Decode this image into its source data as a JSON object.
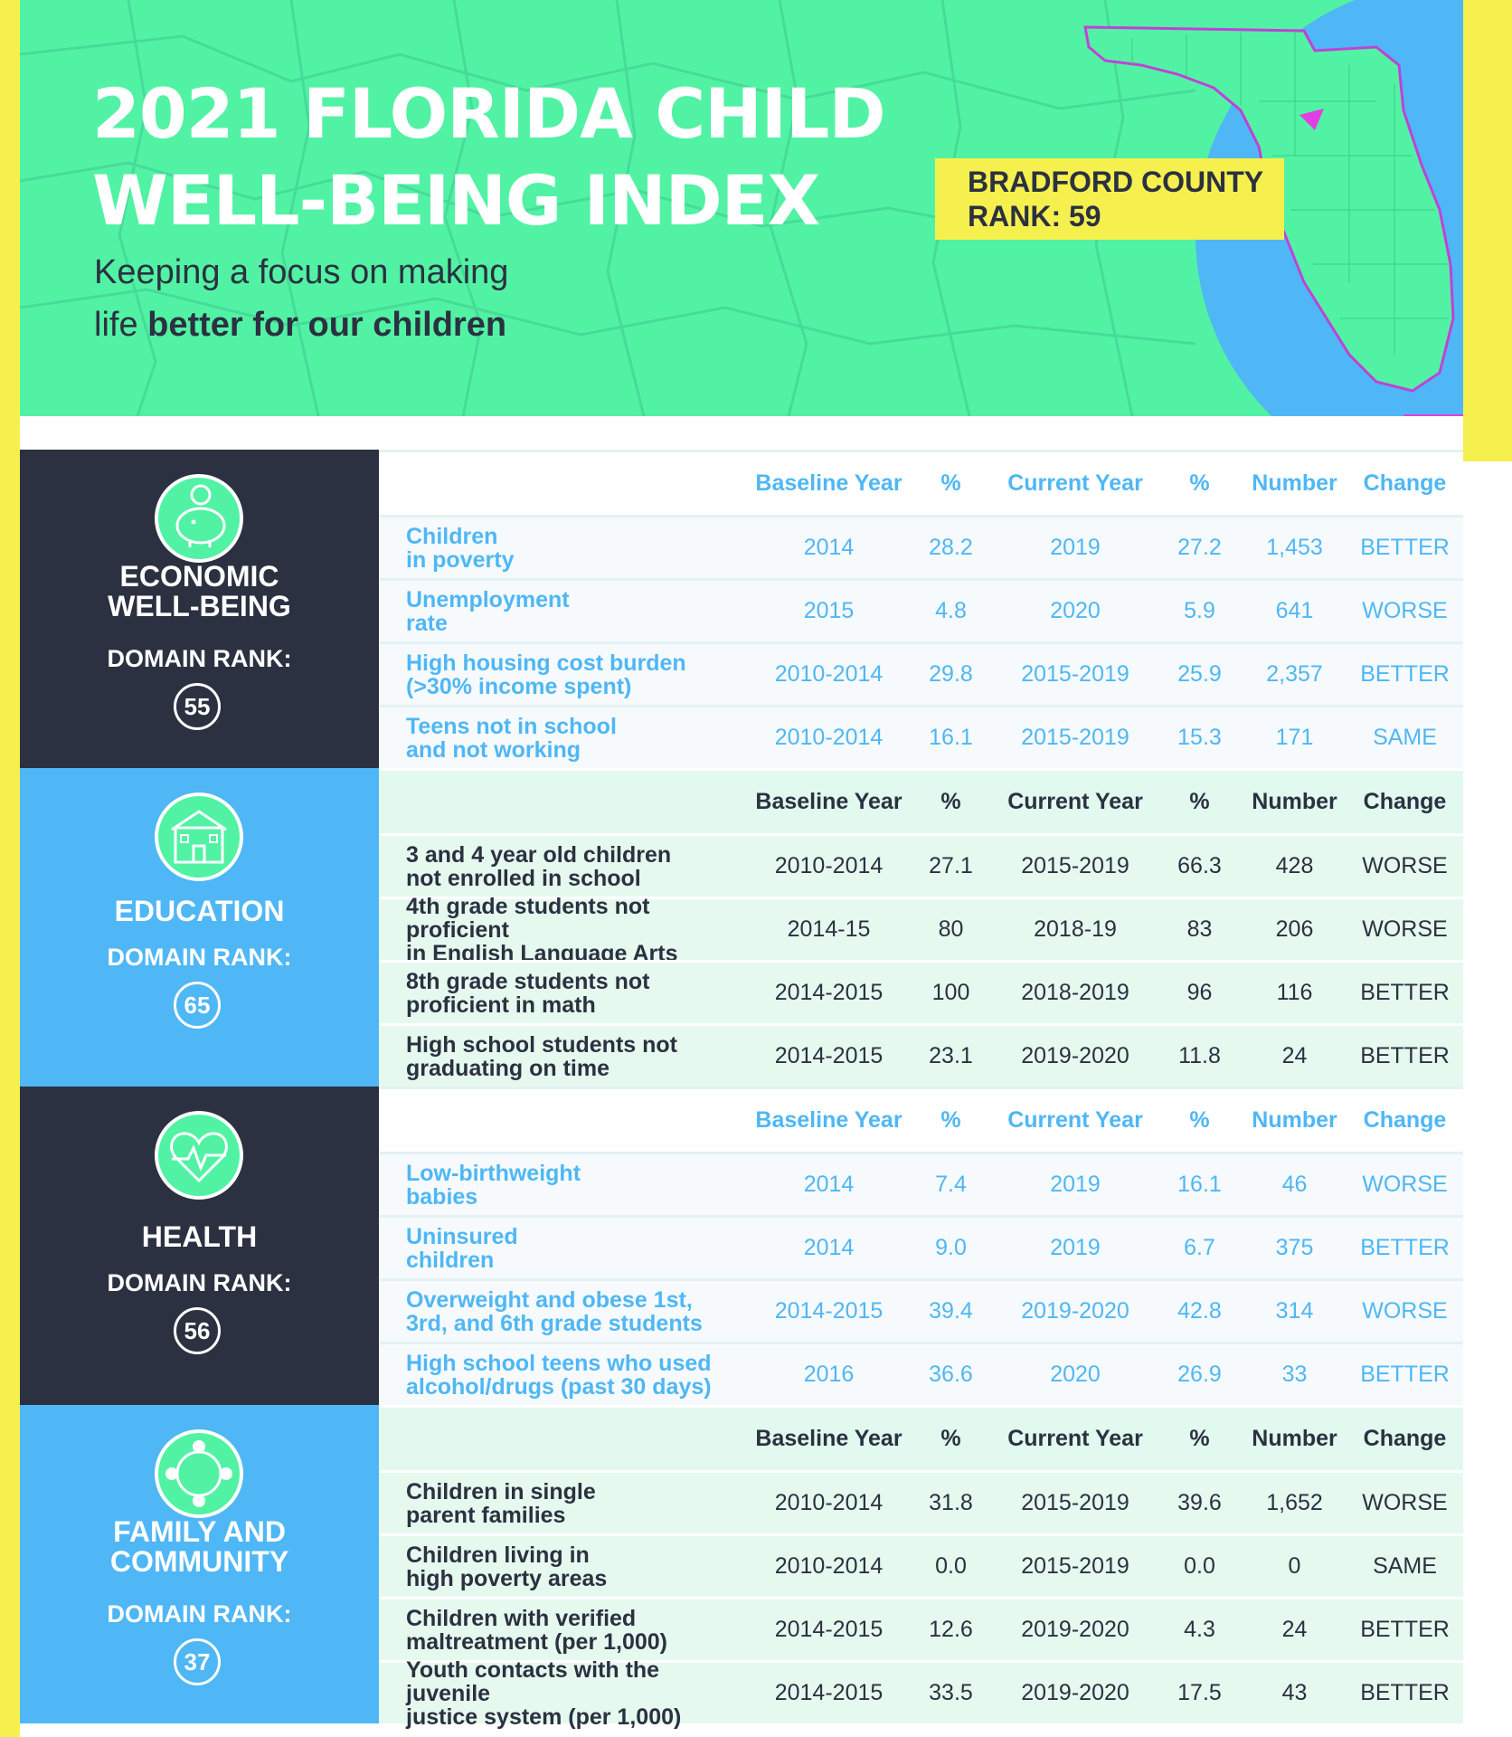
{
  "header": {
    "title_line1": "2021 FLORIDA CHILD",
    "title_line2": "WELL-BEING INDEX",
    "subtitle_line1": "Keeping a focus on making",
    "subtitle_line2_plain": "life ",
    "subtitle_line2_bold": "better for our children",
    "county_line1": "BRADFORD COUNTY",
    "county_line2": "RANK: 59"
  },
  "columns": {
    "baseline_year": "Baseline Year",
    "baseline_pct": "%",
    "current_year": "Current Year",
    "current_pct": "%",
    "number": "Number",
    "change": "Change"
  },
  "domains": [
    {
      "name_line1": "ECONOMIC",
      "name_line2": "WELL-BEING",
      "rank_label": "DOMAIN RANK:",
      "rank": "55",
      "icon": "piggy-bank-icon",
      "rows": [
        {
          "label1": "Children",
          "label2": "in poverty",
          "by": "2014",
          "bp": "28.2",
          "cy": "2019",
          "cp": "27.2",
          "num": "1,453",
          "chg": "BETTER"
        },
        {
          "label1": "Unemployment",
          "label2": "rate",
          "by": "2015",
          "bp": "4.8",
          "cy": "2020",
          "cp": "5.9",
          "num": "641",
          "chg": "WORSE"
        },
        {
          "label1": "High housing cost burden",
          "label2": "(>30% income spent)",
          "by": "2010-2014",
          "bp": "29.8",
          "cy": "2015-2019",
          "cp": "25.9",
          "num": "2,357",
          "chg": "BETTER"
        },
        {
          "label1": "Teens not in school",
          "label2": "and not working",
          "by": "2010-2014",
          "bp": "16.1",
          "cy": "2015-2019",
          "cp": "15.3",
          "num": "171",
          "chg": "SAME"
        }
      ]
    },
    {
      "name_line1": "EDUCATION",
      "name_line2": "",
      "rank_label": "DOMAIN RANK:",
      "rank": "65",
      "icon": "school-building-icon",
      "rows": [
        {
          "label1": "3 and 4 year old children",
          "label2": "not enrolled in school",
          "by": "2010-2014",
          "bp": "27.1",
          "cy": "2015-2019",
          "cp": "66.3",
          "num": "428",
          "chg": "WORSE"
        },
        {
          "label1": "4th grade students not proficient",
          "label2": "in English Language Arts",
          "by": "2014-15",
          "bp": "80",
          "cy": "2018-19",
          "cp": "83",
          "num": "206",
          "chg": "WORSE"
        },
        {
          "label1": "8th grade students not",
          "label2": "proficient in math",
          "by": "2014-2015",
          "bp": "100",
          "cy": "2018-2019",
          "cp": "96",
          "num": "116",
          "chg": "BETTER"
        },
        {
          "label1": "High school students not",
          "label2": "graduating on time",
          "by": "2014-2015",
          "bp": "23.1",
          "cy": "2019-2020",
          "cp": "11.8",
          "num": "24",
          "chg": "BETTER"
        }
      ]
    },
    {
      "name_line1": "HEALTH",
      "name_line2": "",
      "rank_label": "DOMAIN RANK:",
      "rank": "56",
      "icon": "heartbeat-icon",
      "rows": [
        {
          "label1": "Low-birthweight",
          "label2": "babies",
          "by": "2014",
          "bp": "7.4",
          "cy": "2019",
          "cp": "16.1",
          "num": "46",
          "chg": "WORSE"
        },
        {
          "label1": "Uninsured",
          "label2": "children",
          "by": "2014",
          "bp": "9.0",
          "cy": "2019",
          "cp": "6.7",
          "num": "375",
          "chg": "BETTER"
        },
        {
          "label1": "Overweight and obese 1st,",
          "label2": "3rd, and 6th grade students",
          "by": "2014-2015",
          "bp": "39.4",
          "cy": "2019-2020",
          "cp": "42.8",
          "num": "314",
          "chg": "WORSE"
        },
        {
          "label1": "High school teens who used",
          "label2": "alcohol/drugs (past 30 days)",
          "by": "2016",
          "bp": "36.6",
          "cy": "2020",
          "cp": "26.9",
          "num": "33",
          "chg": "BETTER"
        }
      ]
    },
    {
      "name_line1": "FAMILY AND",
      "name_line2": "COMMUNITY",
      "rank_label": "DOMAIN RANK:",
      "rank": "37",
      "icon": "family-community-icon",
      "rows": [
        {
          "label1": "Children in single",
          "label2": "parent families",
          "by": "2010-2014",
          "bp": "31.8",
          "cy": "2015-2019",
          "cp": "39.6",
          "num": "1,652",
          "chg": "WORSE"
        },
        {
          "label1": "Children living in",
          "label2": "high poverty areas",
          "by": "2010-2014",
          "bp": "0.0",
          "cy": "2015-2019",
          "cp": "0.0",
          "num": "0",
          "chg": "SAME"
        },
        {
          "label1": "Children with verified",
          "label2": "maltreatment (per 1,000)",
          "by": "2014-2015",
          "bp": "12.6",
          "cy": "2019-2020",
          "cp": "4.3",
          "num": "24",
          "chg": "BETTER"
        },
        {
          "label1": "Youth contacts with the juvenile",
          "label2": "justice system (per 1,000)",
          "by": "2014-2015",
          "bp": "33.5",
          "cy": "2019-2020",
          "cp": "17.5",
          "num": "43",
          "chg": "BETTER"
        }
      ]
    }
  ]
}
